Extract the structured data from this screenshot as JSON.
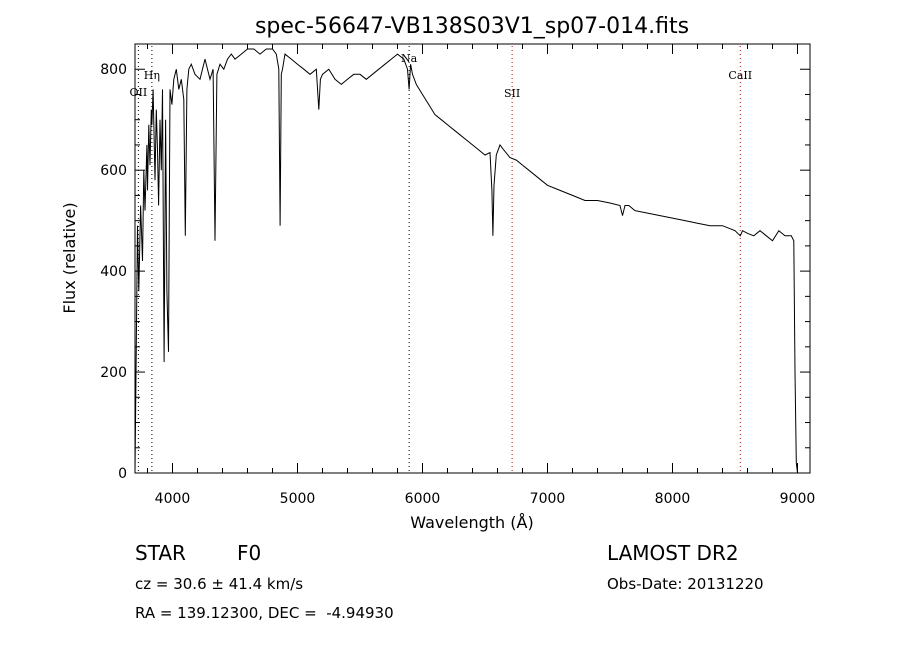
{
  "chart_data": {
    "type": "line",
    "title": "spec-56647-VB138S03V1_sp07-014.fits",
    "xlabel": "Wavelength (Å)",
    "ylabel": "Flux (relative)",
    "xlim": [
      3700,
      9100
    ],
    "ylim": [
      0,
      850
    ],
    "xticks": [
      4000,
      5000,
      6000,
      7000,
      8000,
      9000
    ],
    "yticks": [
      0,
      200,
      400,
      600,
      800
    ],
    "grid": false,
    "line_markers": [
      {
        "label": "OII",
        "x": 3727,
        "color": "#000000"
      },
      {
        "label": "Hη",
        "x": 3835,
        "color": "#000000"
      },
      {
        "label": "Na",
        "x": 5893,
        "color": "#000000"
      },
      {
        "label": "SII",
        "x": 6717,
        "color": "#cc0000"
      },
      {
        "label": "CaII",
        "x": 8542,
        "color": "#cc0000"
      }
    ],
    "series": [
      {
        "x": [
          3700,
          3720,
          3730,
          3745,
          3760,
          3770,
          3780,
          3795,
          3800,
          3810,
          3820,
          3830,
          3835,
          3845,
          3860,
          3870,
          3880,
          3889,
          3900,
          3910,
          3920,
          3933,
          3945,
          3955,
          3968,
          3980,
          3995,
          4010,
          4030,
          4050,
          4070,
          4090,
          4102,
          4115,
          4130,
          4150,
          4180,
          4220,
          4260,
          4300,
          4325,
          4340,
          4355,
          4380,
          4410,
          4440,
          4470,
          4500,
          4550,
          4600,
          4650,
          4700,
          4750,
          4800,
          4830,
          4850,
          4861,
          4870,
          4880,
          4900,
          4950,
          5000,
          5050,
          5100,
          5150,
          5170,
          5183,
          5200,
          5250,
          5300,
          5350,
          5400,
          5450,
          5500,
          5550,
          5600,
          5650,
          5700,
          5750,
          5800,
          5850,
          5880,
          5893,
          5905,
          5920,
          5950,
          6000,
          6050,
          6100,
          6150,
          6200,
          6250,
          6300,
          6350,
          6400,
          6450,
          6500,
          6540,
          6555,
          6563,
          6572,
          6590,
          6620,
          6650,
          6700,
          6750,
          6800,
          6850,
          6900,
          6950,
          7000,
          7100,
          7200,
          7300,
          7400,
          7500,
          7580,
          7600,
          7620,
          7650,
          7700,
          7800,
          7900,
          8000,
          8100,
          8200,
          8300,
          8400,
          8500,
          8542,
          8560,
          8600,
          8650,
          8700,
          8750,
          8800,
          8850,
          8900,
          8930,
          8950,
          8970,
          8980,
          8990,
          9000
        ],
        "values": [
          0,
          490,
          360,
          530,
          420,
          600,
          520,
          650,
          560,
          690,
          610,
          720,
          690,
          760,
          580,
          720,
          640,
          530,
          700,
          600,
          760,
          220,
          700,
          360,
          240,
          760,
          730,
          780,
          800,
          760,
          780,
          740,
          470,
          760,
          800,
          810,
          790,
          780,
          820,
          780,
          800,
          460,
          790,
          810,
          800,
          820,
          830,
          820,
          830,
          840,
          840,
          830,
          840,
          840,
          830,
          800,
          490,
          790,
          800,
          830,
          820,
          810,
          800,
          790,
          800,
          720,
          780,
          790,
          800,
          780,
          770,
          780,
          790,
          790,
          780,
          790,
          800,
          810,
          820,
          830,
          820,
          800,
          760,
          810,
          790,
          770,
          750,
          730,
          710,
          700,
          690,
          680,
          670,
          660,
          650,
          640,
          630,
          635,
          560,
          470,
          570,
          630,
          650,
          640,
          625,
          620,
          610,
          600,
          590,
          580,
          570,
          560,
          550,
          540,
          540,
          535,
          530,
          510,
          530,
          530,
          520,
          515,
          510,
          505,
          500,
          495,
          490,
          490,
          480,
          470,
          480,
          475,
          470,
          480,
          470,
          460,
          480,
          470,
          470,
          470,
          460,
          200,
          20,
          0
        ]
      }
    ]
  },
  "info": {
    "object_class": "STAR",
    "subclass": "F0",
    "redshift": "cz = 30.6 ± 41.4 km/s",
    "coords": "RA = 139.12300, DEC =  -4.94930",
    "survey": "LAMOST DR2",
    "obs_date": "Obs-Date: 20131220"
  }
}
